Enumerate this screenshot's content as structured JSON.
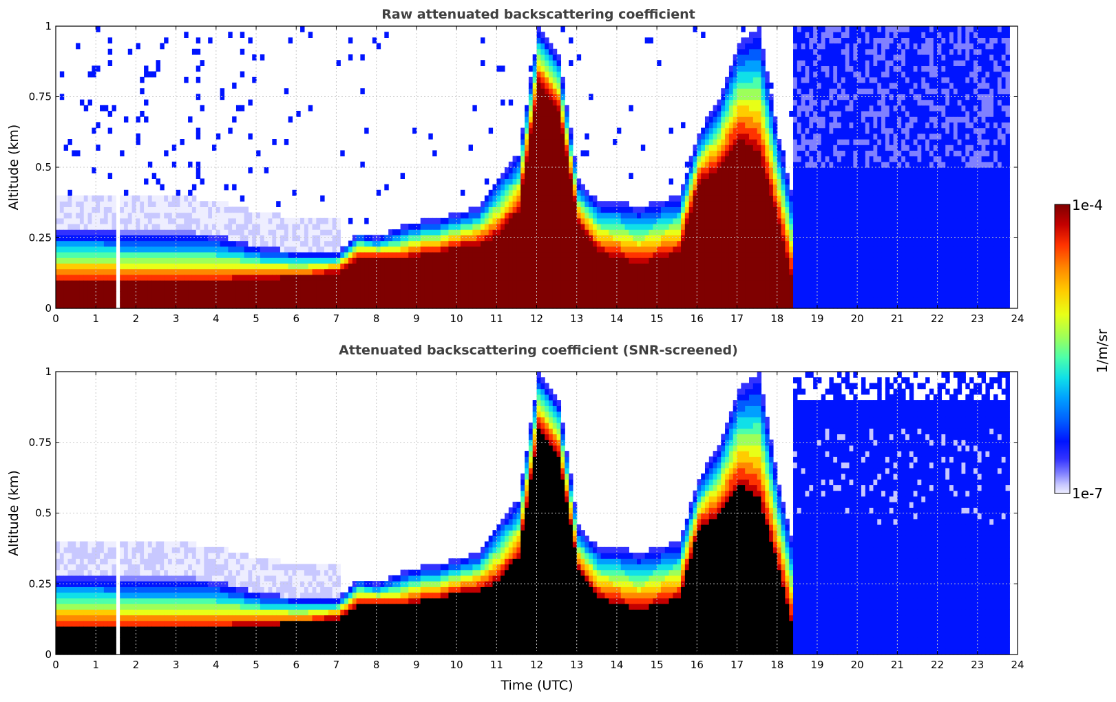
{
  "chart_data": [
    {
      "type": "heatmap",
      "title": "Raw attenuated backscattering coefficient",
      "xlabel": "",
      "ylabel": "Altitude (km)",
      "xlim": [
        0,
        24
      ],
      "ylim": [
        0,
        1
      ],
      "xticks": [
        "0",
        "1",
        "2",
        "3",
        "4",
        "5",
        "6",
        "7",
        "8",
        "9",
        "10",
        "11",
        "12",
        "13",
        "14",
        "15",
        "16",
        "17",
        "18",
        "19",
        "20",
        "21",
        "22",
        "23",
        "24"
      ],
      "yticks": [
        "0",
        "0.25",
        "0.5",
        "0.75",
        "1"
      ],
      "grid": true,
      "screened": false,
      "profile": {
        "time": [
          0,
          0.5,
          1,
          1.5,
          2,
          2.5,
          3,
          3.5,
          4,
          4.5,
          5,
          5.5,
          6,
          6.5,
          7,
          7.5,
          8,
          8.5,
          9,
          9.5,
          10,
          10.5,
          11,
          11.5,
          12,
          12.5,
          13,
          13.5,
          14,
          14.5,
          15,
          15.5,
          16,
          16.5,
          17,
          17.5,
          18,
          18.5,
          19,
          20,
          21,
          22,
          23,
          23.8
        ],
        "layer_top_km": [
          0.28,
          0.28,
          0.28,
          0.27,
          0.27,
          0.27,
          0.27,
          0.27,
          0.26,
          0.24,
          0.22,
          0.21,
          0.2,
          0.2,
          0.2,
          0.27,
          0.25,
          0.29,
          0.31,
          0.32,
          0.34,
          0.36,
          0.47,
          0.55,
          1.0,
          0.9,
          0.45,
          0.38,
          0.38,
          0.36,
          0.38,
          0.4,
          0.62,
          0.75,
          0.95,
          1.0,
          0.6,
          0.3,
          0.3,
          0.3,
          0.3,
          0.3,
          0.3,
          0.3
        ],
        "core_top_km": [
          0.09,
          0.09,
          0.09,
          0.09,
          0.09,
          0.09,
          0.09,
          0.09,
          0.09,
          0.1,
          0.1,
          0.11,
          0.11,
          0.12,
          0.13,
          0.18,
          0.18,
          0.17,
          0.19,
          0.2,
          0.22,
          0.23,
          0.26,
          0.35,
          0.8,
          0.7,
          0.3,
          0.2,
          0.18,
          0.16,
          0.18,
          0.2,
          0.45,
          0.5,
          0.6,
          0.55,
          0.3,
          0.0,
          0.0,
          0.0,
          0.0,
          0.0,
          0.0,
          0.0
        ]
      }
    },
    {
      "type": "heatmap",
      "title": "Attenuated backscattering coefficient (SNR-screened)",
      "xlabel": "Time (UTC)",
      "ylabel": "Altitude (km)",
      "xlim": [
        0,
        24
      ],
      "ylim": [
        0,
        1
      ],
      "xticks": [
        "0",
        "1",
        "2",
        "3",
        "4",
        "5",
        "6",
        "7",
        "8",
        "9",
        "10",
        "11",
        "12",
        "13",
        "14",
        "15",
        "16",
        "17",
        "18",
        "19",
        "20",
        "21",
        "22",
        "23",
        "24"
      ],
      "yticks": [
        "0",
        "0.25",
        "0.5",
        "0.75",
        "1"
      ],
      "grid": true,
      "screened": true,
      "profile": {
        "time": [
          0,
          0.5,
          1,
          1.5,
          2,
          2.5,
          3,
          3.5,
          4,
          4.5,
          5,
          5.5,
          6,
          6.5,
          7,
          7.5,
          8,
          8.5,
          9,
          9.5,
          10,
          10.5,
          11,
          11.5,
          12,
          12.5,
          13,
          13.5,
          14,
          14.5,
          15,
          15.5,
          16,
          16.5,
          17,
          17.5,
          18,
          18.5,
          19,
          20,
          21,
          22,
          23,
          23.8
        ],
        "layer_top_km": [
          0.28,
          0.28,
          0.28,
          0.27,
          0.27,
          0.27,
          0.27,
          0.27,
          0.26,
          0.24,
          0.22,
          0.21,
          0.2,
          0.2,
          0.2,
          0.27,
          0.25,
          0.29,
          0.31,
          0.32,
          0.34,
          0.36,
          0.47,
          0.55,
          1.0,
          0.9,
          0.45,
          0.38,
          0.38,
          0.36,
          0.38,
          0.4,
          0.62,
          0.75,
          0.95,
          1.0,
          0.6,
          0.3,
          0.3,
          0.3,
          0.3,
          0.3,
          0.3,
          0.3
        ],
        "core_top_km": [
          0.09,
          0.09,
          0.09,
          0.09,
          0.09,
          0.09,
          0.09,
          0.09,
          0.09,
          0.1,
          0.1,
          0.11,
          0.11,
          0.12,
          0.13,
          0.18,
          0.18,
          0.17,
          0.19,
          0.2,
          0.22,
          0.23,
          0.26,
          0.35,
          0.8,
          0.7,
          0.3,
          0.2,
          0.18,
          0.16,
          0.18,
          0.2,
          0.45,
          0.5,
          0.6,
          0.55,
          0.3,
          0.0,
          0.0,
          0.0,
          0.0,
          0.0,
          0.0,
          0.0
        ]
      }
    }
  ],
  "colorbar": {
    "max_label": "1e-4",
    "min_label": "1e-7",
    "unit_label": "1/m/sr",
    "colors": [
      "#7f0000",
      "#c40000",
      "#ff3300",
      "#ff8800",
      "#ffcc00",
      "#e8ff17",
      "#9dff5a",
      "#4dffaa",
      "#10e0e8",
      "#00a0ff",
      "#005cff",
      "#0014ff",
      "#3232ff",
      "#8080ff",
      "#c8c8ff",
      "#eeeeff"
    ]
  },
  "colors": {
    "title": "#404040",
    "grid": "#c8c8c8",
    "clutter_black": "#000000"
  }
}
